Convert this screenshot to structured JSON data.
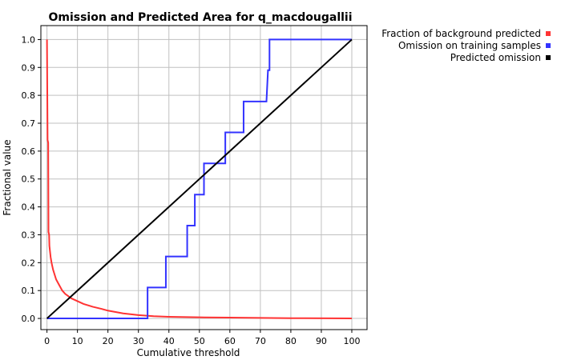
{
  "chart_data": {
    "type": "line",
    "title": "Omission and Predicted Area for q_macdougallii",
    "xlabel": "Cumulative threshold",
    "ylabel": "Fractional value",
    "xlim": [
      -2,
      105
    ],
    "ylim": [
      -0.04,
      1.05
    ],
    "xticks": [
      0,
      10,
      20,
      30,
      40,
      50,
      60,
      70,
      80,
      90,
      100
    ],
    "yticks": [
      0.0,
      0.1,
      0.2,
      0.3,
      0.4,
      0.5,
      0.6,
      0.7,
      0.8,
      0.9,
      1.0
    ],
    "grid": true,
    "legend_position": "top-right",
    "series": [
      {
        "name": "Fraction of background predicted",
        "color": "#ff3333",
        "points": [
          [
            0,
            1.0
          ],
          [
            0.2,
            0.64
          ],
          [
            0.4,
            0.63
          ],
          [
            0.5,
            0.31
          ],
          [
            0.7,
            0.3
          ],
          [
            0.8,
            0.26
          ],
          [
            1.2,
            0.22
          ],
          [
            1.5,
            0.2
          ],
          [
            2,
            0.175
          ],
          [
            3,
            0.14
          ],
          [
            4,
            0.12
          ],
          [
            5,
            0.1
          ],
          [
            6,
            0.088
          ],
          [
            8,
            0.072
          ],
          [
            10,
            0.062
          ],
          [
            12,
            0.052
          ],
          [
            15,
            0.042
          ],
          [
            18,
            0.034
          ],
          [
            20,
            0.028
          ],
          [
            25,
            0.018
          ],
          [
            30,
            0.012
          ],
          [
            35,
            0.008
          ],
          [
            40,
            0.006
          ],
          [
            50,
            0.004
          ],
          [
            60,
            0.003
          ],
          [
            70,
            0.002
          ],
          [
            80,
            0.001
          ],
          [
            100,
            0.0
          ]
        ]
      },
      {
        "name": "Omission on training samples",
        "color": "#3333ff",
        "points": [
          [
            0,
            0
          ],
          [
            33,
            0
          ],
          [
            33,
            0.111
          ],
          [
            39,
            0.111
          ],
          [
            39,
            0.222
          ],
          [
            46,
            0.222
          ],
          [
            46,
            0.333
          ],
          [
            48.5,
            0.333
          ],
          [
            48.5,
            0.444
          ],
          [
            51.5,
            0.444
          ],
          [
            51.5,
            0.556
          ],
          [
            58.5,
            0.556
          ],
          [
            58.5,
            0.667
          ],
          [
            64.5,
            0.667
          ],
          [
            64.5,
            0.778
          ],
          [
            72,
            0.778
          ],
          [
            72.5,
            0.89
          ],
          [
            73,
            0.89
          ],
          [
            73,
            1.0
          ],
          [
            100,
            1.0
          ]
        ]
      },
      {
        "name": "Predicted omission",
        "color": "#000000",
        "points": [
          [
            0,
            0
          ],
          [
            100,
            1.0
          ]
        ]
      }
    ]
  }
}
